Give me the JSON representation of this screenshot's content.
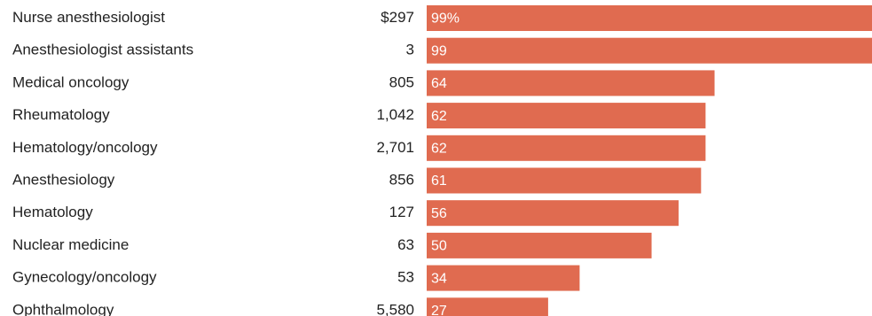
{
  "chart_data": {
    "type": "bar",
    "orientation": "horizontal",
    "categories": [
      "Nurse anesthesiologist",
      "Anesthesiologist assistants",
      "Medical oncology",
      "Rheumatology",
      "Hematology/oncology",
      "Anesthesiology",
      "Hematology",
      "Nuclear medicine",
      "Gynecology/oncology",
      "Ophthalmology"
    ],
    "amounts": [
      "$297",
      "3",
      "805",
      "1,042",
      "2,701",
      "856",
      "127",
      "63",
      "53",
      "5,580"
    ],
    "values": [
      99,
      99,
      64,
      62,
      62,
      61,
      56,
      50,
      34,
      27
    ],
    "value_labels": [
      "99%",
      "99",
      "64",
      "62",
      "62",
      "61",
      "56",
      "50",
      "34",
      "27"
    ],
    "xlim": [
      0,
      99
    ],
    "grid": false,
    "colors": {
      "bar": "#e06b50",
      "bar_label": "#ffffff",
      "text": "#222222"
    }
  }
}
